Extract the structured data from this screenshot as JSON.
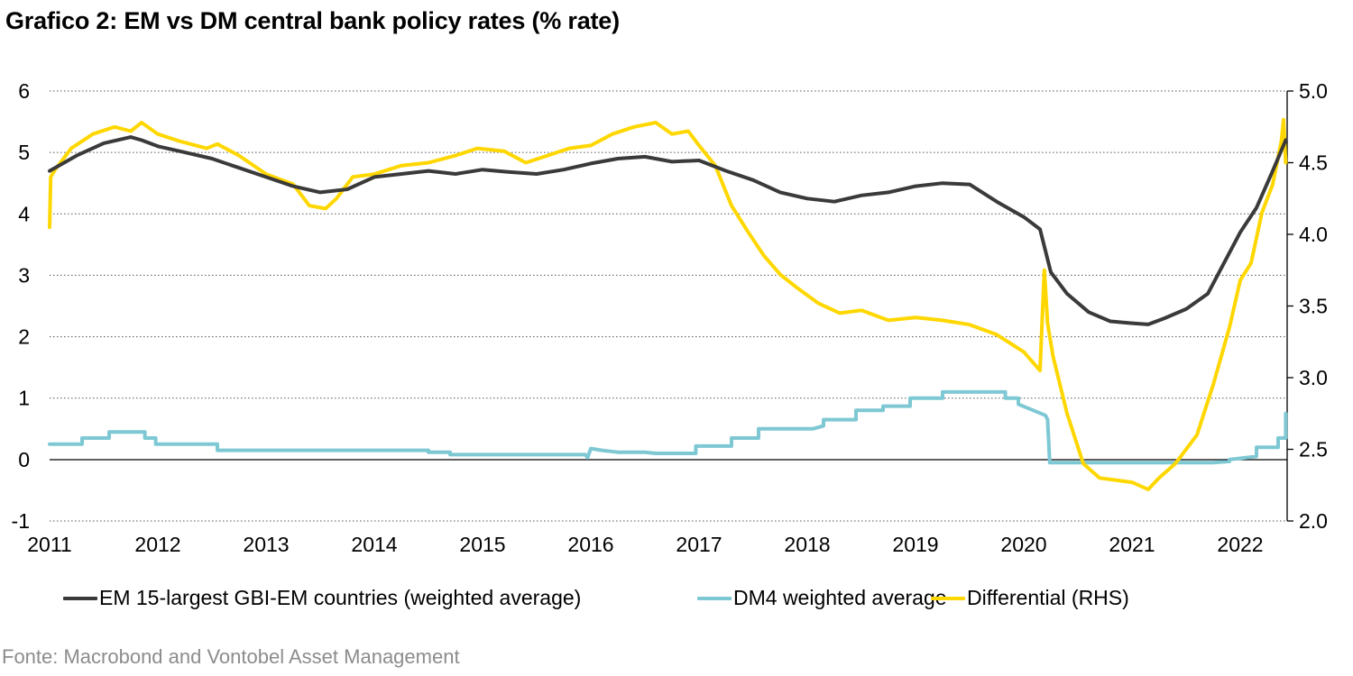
{
  "header": {
    "title": "Grafico 2: EM vs DM central bank policy rates (% rate)"
  },
  "footer": {
    "source": "Fonte: Macrobond and Vontobel Asset Management"
  },
  "legend": {
    "items": [
      {
        "label": "EM 15-largest GBI-EM countries (weighted average)",
        "color": "#3a3a3a"
      },
      {
        "label": "DM4 weighted average",
        "color": "#7ec8d4"
      },
      {
        "label": "Differential (RHS)",
        "color": "#ffd700"
      }
    ]
  },
  "axes": {
    "left_ticks": [
      "6",
      "5",
      "4",
      "3",
      "2",
      "1",
      "0",
      "-1"
    ],
    "right_ticks": [
      "5.0",
      "4.5",
      "4.0",
      "3.5",
      "3.0",
      "2.5",
      "2.0"
    ],
    "x_ticks": [
      "2011",
      "2012",
      "2013",
      "2014",
      "2015",
      "2016",
      "2017",
      "2018",
      "2019",
      "2020",
      "2021",
      "2022"
    ]
  },
  "chart_data": {
    "type": "line",
    "title": "Grafico 2: EM vs DM central bank policy rates (% rate)",
    "xlabel": "",
    "ylabel": "% rate",
    "ylim": [
      -1,
      6
    ],
    "y2lim": [
      2.0,
      5.0
    ],
    "xlim": [
      2011.0,
      2022.45
    ],
    "grid": true,
    "legend_position": "bottom",
    "x_ticks": [
      2011,
      2012,
      2013,
      2014,
      2015,
      2016,
      2017,
      2018,
      2019,
      2020,
      2021,
      2022
    ],
    "y_ticks": [
      -1,
      0,
      1,
      2,
      3,
      4,
      5,
      6
    ],
    "y2_ticks": [
      2.0,
      2.5,
      3.0,
      3.5,
      4.0,
      4.5,
      5.0
    ],
    "series": [
      {
        "name": "EM 15-largest GBI-EM countries (weighted average)",
        "axis": "left",
        "color": "#3a3a3a",
        "x": [
          2011.0,
          2011.05,
          2011.25,
          2011.5,
          2011.75,
          2011.85,
          2012.0,
          2012.25,
          2012.5,
          2012.75,
          2013.0,
          2013.25,
          2013.5,
          2013.75,
          2014.0,
          2014.25,
          2014.5,
          2014.75,
          2015.0,
          2015.25,
          2015.5,
          2015.75,
          2016.0,
          2016.25,
          2016.5,
          2016.75,
          2017.0,
          2017.25,
          2017.5,
          2017.75,
          2018.0,
          2018.25,
          2018.5,
          2018.75,
          2019.0,
          2019.25,
          2019.5,
          2019.75,
          2020.0,
          2020.15,
          2020.25,
          2020.4,
          2020.6,
          2020.8,
          2021.0,
          2021.15,
          2021.3,
          2021.5,
          2021.7,
          2021.85,
          2022.0,
          2022.15,
          2022.3,
          2022.42
        ],
        "values": [
          4.7,
          4.75,
          4.95,
          5.15,
          5.25,
          5.2,
          5.1,
          5.0,
          4.9,
          4.75,
          4.6,
          4.45,
          4.35,
          4.4,
          4.6,
          4.65,
          4.7,
          4.65,
          4.72,
          4.68,
          4.65,
          4.72,
          4.82,
          4.9,
          4.93,
          4.85,
          4.87,
          4.7,
          4.55,
          4.35,
          4.25,
          4.2,
          4.3,
          4.35,
          4.45,
          4.5,
          4.48,
          4.2,
          3.95,
          3.75,
          3.05,
          2.7,
          2.4,
          2.25,
          2.22,
          2.2,
          2.3,
          2.45,
          2.7,
          3.2,
          3.7,
          4.1,
          4.7,
          5.2
        ]
      },
      {
        "name": "DM4 weighted average",
        "axis": "left",
        "color": "#7ec8d4",
        "x": [
          2011.0,
          2011.3,
          2011.3,
          2011.55,
          2011.55,
          2011.88,
          2011.88,
          2011.98,
          2011.98,
          2012.55,
          2012.55,
          2014.5,
          2014.5,
          2014.7,
          2014.7,
          2015.95,
          2015.97,
          2016.0,
          2016.1,
          2016.25,
          2016.5,
          2016.6,
          2016.97,
          2016.97,
          2017.3,
          2017.3,
          2017.55,
          2017.55,
          2018.05,
          2018.15,
          2018.15,
          2018.45,
          2018.45,
          2018.7,
          2018.7,
          2018.95,
          2018.95,
          2019.25,
          2019.25,
          2019.83,
          2019.83,
          2019.95,
          2019.95,
          2020.2,
          2020.22,
          2020.24,
          2021.75,
          2021.9,
          2021.9,
          2022.15,
          2022.15,
          2022.35,
          2022.35,
          2022.42,
          2022.42
        ],
        "values": [
          0.25,
          0.25,
          0.35,
          0.35,
          0.45,
          0.45,
          0.35,
          0.35,
          0.25,
          0.25,
          0.15,
          0.15,
          0.12,
          0.12,
          0.08,
          0.08,
          0.03,
          0.18,
          0.15,
          0.12,
          0.12,
          0.1,
          0.1,
          0.22,
          0.22,
          0.35,
          0.35,
          0.5,
          0.5,
          0.55,
          0.65,
          0.65,
          0.8,
          0.8,
          0.87,
          0.87,
          1.0,
          1.0,
          1.1,
          1.1,
          1.0,
          1.0,
          0.9,
          0.72,
          0.65,
          -0.05,
          -0.05,
          -0.03,
          0.0,
          0.05,
          0.2,
          0.2,
          0.35,
          0.35,
          0.75
        ]
      },
      {
        "name": "Differential (RHS)",
        "axis": "right",
        "color": "#ffd700",
        "x": [
          2011.0,
          2011.01,
          2011.05,
          2011.2,
          2011.4,
          2011.6,
          2011.75,
          2011.85,
          2012.0,
          2012.2,
          2012.45,
          2012.55,
          2012.75,
          2013.0,
          2013.25,
          2013.4,
          2013.55,
          2013.65,
          2013.8,
          2014.0,
          2014.25,
          2014.5,
          2014.75,
          2014.95,
          2015.2,
          2015.4,
          2015.6,
          2015.8,
          2016.0,
          2016.2,
          2016.4,
          2016.6,
          2016.75,
          2016.9,
          2017.0,
          2017.15,
          2017.3,
          2017.45,
          2017.6,
          2017.75,
          2017.9,
          2018.1,
          2018.3,
          2018.5,
          2018.75,
          2019.0,
          2019.25,
          2019.5,
          2019.75,
          2020.0,
          2020.15,
          2020.19,
          2020.22,
          2020.27,
          2020.4,
          2020.55,
          2020.7,
          2020.9,
          2021.0,
          2021.15,
          2021.25,
          2021.4,
          2021.6,
          2021.75,
          2021.9,
          2022.0,
          2022.1,
          2022.2,
          2022.3,
          2022.38,
          2022.4,
          2022.42
        ],
        "values": [
          4.05,
          4.4,
          4.45,
          4.6,
          4.7,
          4.75,
          4.72,
          4.78,
          4.7,
          4.65,
          4.6,
          4.63,
          4.55,
          4.42,
          4.35,
          4.2,
          4.18,
          4.25,
          4.4,
          4.42,
          4.48,
          4.5,
          4.55,
          4.6,
          4.58,
          4.5,
          4.55,
          4.6,
          4.62,
          4.7,
          4.75,
          4.78,
          4.7,
          4.72,
          4.62,
          4.48,
          4.2,
          4.02,
          3.85,
          3.72,
          3.63,
          3.52,
          3.45,
          3.47,
          3.4,
          3.42,
          3.4,
          3.37,
          3.3,
          3.18,
          3.05,
          3.75,
          3.38,
          3.15,
          2.75,
          2.4,
          2.3,
          2.28,
          2.27,
          2.22,
          2.3,
          2.4,
          2.6,
          2.95,
          3.35,
          3.68,
          3.8,
          4.15,
          4.35,
          4.65,
          4.8,
          4.5
        ]
      }
    ]
  }
}
